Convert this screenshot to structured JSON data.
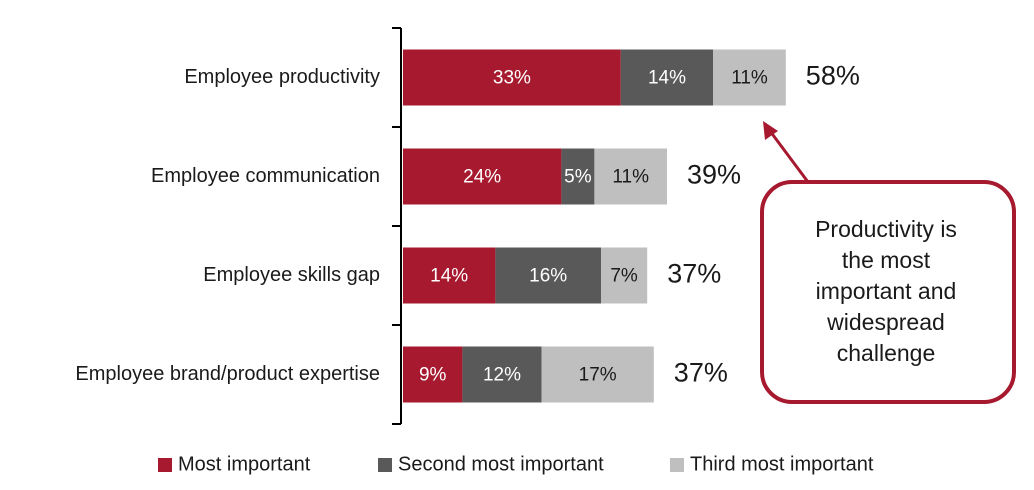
{
  "chart_data": {
    "type": "stacked-bar-horizontal",
    "categories": [
      "Employee productivity",
      "Employee communication",
      "Employee skills gap",
      "Employee brand/product expertise"
    ],
    "series": [
      {
        "name": "Most important",
        "color": "#a6192e",
        "values": [
          33,
          24,
          14,
          9
        ],
        "value_labels": [
          "33%",
          "24%",
          "14%",
          "9%"
        ]
      },
      {
        "name": "Second most important",
        "color": "#595959",
        "values": [
          14,
          5,
          16,
          12
        ],
        "value_labels": [
          "14%",
          "5%",
          "16%",
          "12%"
        ]
      },
      {
        "name": "Third most important",
        "color": "#bfbfbf",
        "values": [
          11,
          11,
          7,
          17
        ],
        "value_labels": [
          "11%",
          "11%",
          "7%",
          "17%"
        ]
      }
    ],
    "totals": {
      "values": [
        58,
        39,
        37,
        37
      ],
      "value_labels": [
        "58%",
        "39%",
        "37%",
        "37%"
      ]
    },
    "annotation": [
      "Productivity is",
      "the most",
      "important and",
      "widespread",
      "challenge"
    ],
    "legend": "bottom"
  }
}
